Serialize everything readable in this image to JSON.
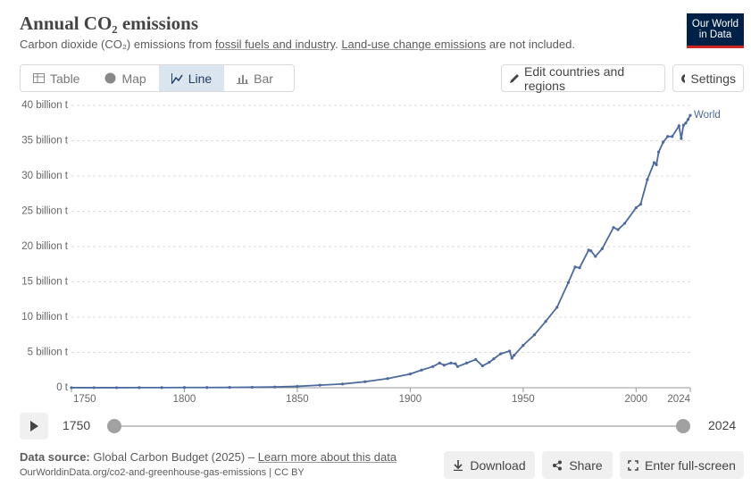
{
  "header": {
    "title": "Annual CO₂ emissions",
    "subtitle": [
      "Carbon dioxide (CO₂) emissions from",
      "fossil fuels and industry",
      ".",
      "Land-use change emissions",
      "are not included."
    ],
    "logo": [
      "Our World",
      "in Data"
    ]
  },
  "controls": {
    "tabs": [
      "Table",
      "Map",
      "Line",
      "Bar"
    ],
    "edit": "Edit countries and regions",
    "settings": "Settings"
  },
  "chart_data": {
    "type": "line",
    "x": [
      1750,
      1760,
      1770,
      1780,
      1790,
      1800,
      1810,
      1820,
      1830,
      1840,
      1850,
      1860,
      1870,
      1880,
      1890,
      1900,
      1905,
      1910,
      1913,
      1915,
      1918,
      1920,
      1921,
      1925,
      1929,
      1932,
      1935,
      1937,
      1940,
      1944,
      1945,
      1946,
      1950,
      1955,
      1960,
      1965,
      1970,
      1973,
      1975,
      1979,
      1980,
      1982,
      1985,
      1990,
      1992,
      1995,
      2000,
      2002,
      2005,
      2008,
      2009,
      2010,
      2012,
      2014,
      2016,
      2019,
      2020,
      2021,
      2022,
      2023,
      2024
    ],
    "series": [
      {
        "name": "World",
        "color": "#4c6a9c",
        "values": [
          0.009,
          0.01,
          0.011,
          0.013,
          0.015,
          0.028,
          0.035,
          0.043,
          0.07,
          0.1,
          0.2,
          0.36,
          0.53,
          0.85,
          1.3,
          1.95,
          2.5,
          3.0,
          3.5,
          3.2,
          3.5,
          3.4,
          3.0,
          3.5,
          4.0,
          3.1,
          3.6,
          4.1,
          4.8,
          5.2,
          4.2,
          4.6,
          6.0,
          7.5,
          9.4,
          11.4,
          14.9,
          17.1,
          17.0,
          19.5,
          19.4,
          18.6,
          19.7,
          22.7,
          22.4,
          23.3,
          25.5,
          26.0,
          29.5,
          31.9,
          31.6,
          33.4,
          34.8,
          35.6,
          35.6,
          37.1,
          35.3,
          37.2,
          37.5,
          38.0,
          38.6
        ]
      }
    ],
    "xlim": [
      1750,
      2024
    ],
    "xticks": [
      1750,
      1800,
      1850,
      1900,
      1950,
      2000,
      2024
    ],
    "ylim": [
      0,
      40
    ],
    "yticks": [
      {
        "value": 0,
        "label": "0 t"
      },
      {
        "value": 5,
        "label": "5 billion t"
      },
      {
        "value": 10,
        "label": "10 billion t"
      },
      {
        "value": 15,
        "label": "15 billion t"
      },
      {
        "value": 20,
        "label": "20 billion t"
      },
      {
        "value": 25,
        "label": "25 billion t"
      },
      {
        "value": 30,
        "label": "30 billion t"
      },
      {
        "value": 35,
        "label": "35 billion t"
      },
      {
        "value": 40,
        "label": "40 billion t"
      }
    ],
    "grid": true
  },
  "timeline": {
    "start": "1750",
    "end": "2024"
  },
  "footer": {
    "source_label": "Data source:",
    "source": "Global Carbon Budget (2025) –",
    "learn_more": "Learn more about this data",
    "url": "OurWorldinData.org/co2-and-greenhouse-gas-emissions | CC BY"
  },
  "actions": [
    "Download",
    "Share",
    "Enter full-screen"
  ]
}
